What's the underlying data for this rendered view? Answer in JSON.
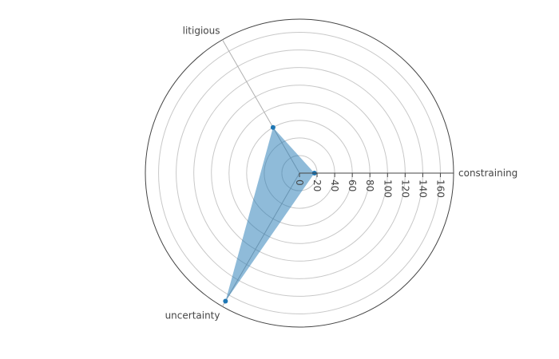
{
  "chart_data": {
    "type": "radar",
    "categories": [
      "constraining",
      "litigious",
      "uncertainty"
    ],
    "series": [
      {
        "name": "",
        "values": [
          17,
          60,
          168
        ]
      }
    ],
    "radial_range": [
      0,
      175
    ],
    "radial_ticks": [
      0,
      20,
      40,
      60,
      80,
      100,
      120,
      140,
      160
    ],
    "angular_direction": "counterclockwise",
    "start_angle_deg": 0,
    "grid": true,
    "legend": "none",
    "colors": {
      "fill": "#1f77b4",
      "marker": "#1f77b4"
    }
  }
}
